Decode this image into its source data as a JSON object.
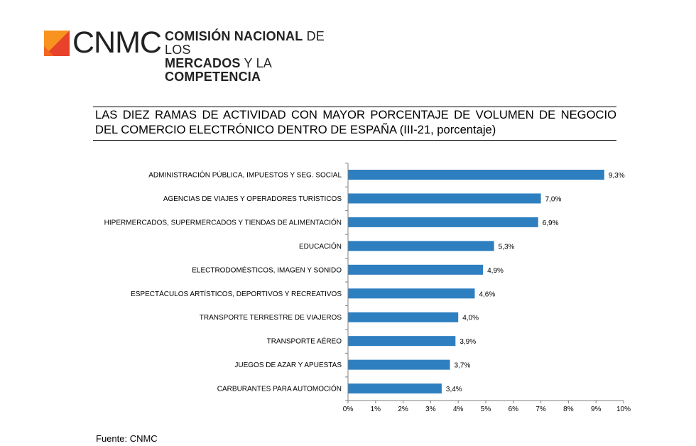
{
  "header": {
    "logo_letters": "CNMC",
    "org_line1_bold": "COMISIÓN NACIONAL",
    "org_line1_light": " DE LOS",
    "org_line2_bold": "MERCADOS",
    "org_line2_light": " Y LA ",
    "org_line2_bold2": "COMPETENCIA",
    "brand_colors": [
      "#f7931e",
      "#e8432a"
    ]
  },
  "title": "LAS DIEZ RAMAS DE ACTIVIDAD CON MAYOR PORCENTAJE DE VOLUMEN DE NEGOCIO DEL COMERCIO ELECTRÓNICO DENTRO DE ESPAÑA (III-21, porcentaje)",
  "source": "Fuente: CNMC",
  "chart_data": {
    "type": "bar",
    "orientation": "horizontal",
    "categories": [
      "ADMINISTRACIÓN PÚBLICA, IMPUESTOS Y SEG. SOCIAL",
      "AGENCIAS DE VIAJES Y OPERADORES TURÍSTICOS",
      "HIPERMERCADOS, SUPERMERCADOS Y TIENDAS DE ALIMENTACIÓN",
      "EDUCACIÓN",
      "ELECTRODOMÉSTICOS, IMAGEN Y SONIDO",
      "ESPECTÁCULOS ARTÍSTICOS, DEPORTIVOS Y RECREATIVOS",
      "TRANSPORTE TERRESTRE DE VIAJEROS",
      "TRANSPORTE AÉREO",
      "JUEGOS DE AZAR Y APUESTAS",
      "CARBURANTES PARA AUTOMOCIÓN"
    ],
    "values": [
      9.3,
      7.0,
      6.9,
      5.3,
      4.9,
      4.6,
      4.0,
      3.9,
      3.7,
      3.4
    ],
    "value_labels": [
      "9,3%",
      "7,0%",
      "6,9%",
      "5,3%",
      "4,9%",
      "4,6%",
      "4,0%",
      "3,9%",
      "3,7%",
      "3,4%"
    ],
    "x_ticks": [
      "0%",
      "1%",
      "2%",
      "3%",
      "4%",
      "5%",
      "6%",
      "7%",
      "8%",
      "9%",
      "10%"
    ],
    "xlim": [
      0,
      10
    ],
    "bar_color": "#2e7fc0",
    "grid": false,
    "legend": "none"
  }
}
